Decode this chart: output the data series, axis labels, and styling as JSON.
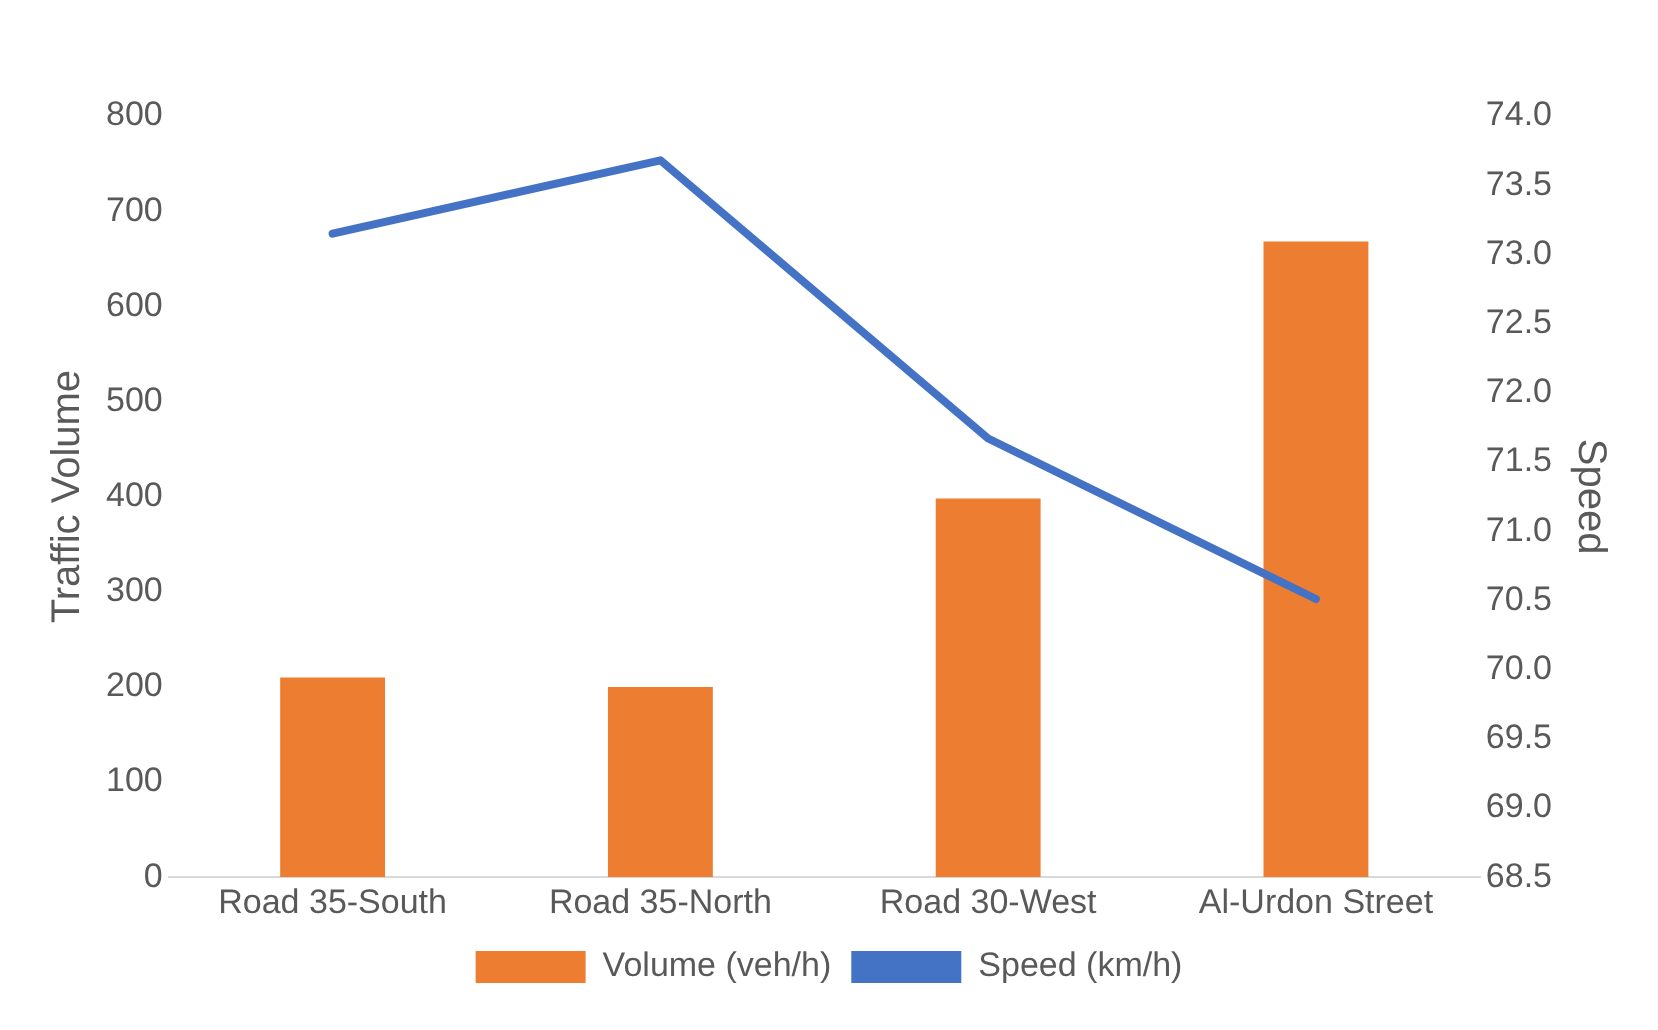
{
  "chart_data": {
    "type": "bar",
    "categories": [
      "Road 35-South",
      "Road 35-North",
      "Road 30-West",
      "Al-Urdon Street"
    ],
    "ylabel": "Traffic Volume",
    "y2label": "Speed",
    "series": [
      {
        "name": "Volume (veh/h)",
        "color": "#ed7d31",
        "values": [
          210,
          200,
          398,
          668
        ]
      },
      {
        "name": "Speed (km/h)",
        "type": "line",
        "axis": "y2",
        "color": "#4472c4",
        "values": [
          73.15,
          73.68,
          71.67,
          70.51
        ]
      }
    ],
    "ylim": [
      0,
      800
    ],
    "yticks": [
      0,
      100,
      200,
      300,
      400,
      500,
      600,
      700,
      800
    ],
    "y2lim": [
      68.5,
      74
    ],
    "y2ticks": [
      {
        "value": 68.5,
        "label": "68.5"
      },
      {
        "value": 69,
        "label": "69.0"
      },
      {
        "value": 69.5,
        "label": "69.5"
      },
      {
        "value": 70,
        "label": "70.0"
      },
      {
        "value": 70.5,
        "label": "70.5"
      },
      {
        "value": 71,
        "label": "71.0"
      },
      {
        "value": 71.5,
        "label": "71.5"
      },
      {
        "value": 72,
        "label": "72.0"
      },
      {
        "value": 72.5,
        "label": "72.5"
      },
      {
        "value": 73,
        "label": "73.0"
      },
      {
        "value": 73.5,
        "label": "73.5"
      },
      {
        "value": 74,
        "label": "74.0"
      }
    ],
    "grid": false,
    "legend": "bottom",
    "marker": "none",
    "line_style": "solid"
  }
}
